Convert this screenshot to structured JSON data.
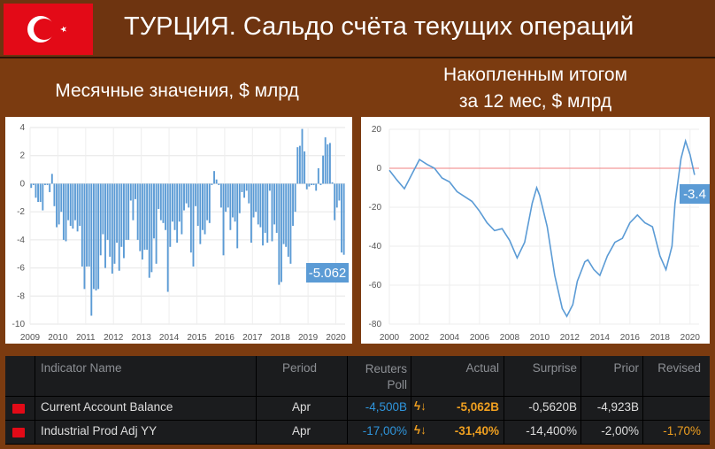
{
  "header": {
    "title": "ТУРЦИЯ. Сальдо счёта текущих операций",
    "flag": "turkey-flag"
  },
  "left_subtitle": "Месячные значения, $ млрд",
  "right_subtitle_line1": "Накопленным итогом",
  "right_subtitle_line2": "за 12 мес, $ млрд",
  "chart_data": [
    {
      "type": "bar",
      "color": "#5b9bd5",
      "ylim": [
        -10,
        4
      ],
      "yticks": [
        "4",
        "2",
        "0",
        "-2",
        "-4",
        "-6",
        "-8",
        "-10"
      ],
      "xticks": [
        "2009",
        "2010",
        "2011",
        "2012",
        "2013",
        "2014",
        "2015",
        "2016",
        "2017",
        "2018",
        "2019",
        "2020"
      ],
      "start": "2009-01",
      "annotation": "-5.062",
      "values": [
        -0.3,
        -0.1,
        -1.0,
        -1.3,
        -1.3,
        -1.9,
        -0.1,
        -0.1,
        -0.6,
        0.7,
        -1.6,
        -3.1,
        -2.9,
        -2.0,
        -4.0,
        -4.1,
        -2.6,
        -3.0,
        -3.2,
        -2.6,
        -3.4,
        -3.0,
        -5.9,
        -7.5,
        -5.9,
        -5.9,
        -9.4,
        -7.5,
        -7.6,
        -7.5,
        -5.1,
        -3.6,
        -6.0,
        -4.0,
        -5.2,
        -6.4,
        -5.7,
        -4.2,
        -6.2,
        -4.5,
        -5.3,
        -4.0,
        -4.0,
        -1.2,
        -2.6,
        -1.1,
        -4.0,
        -4.8,
        -5.4,
        -4.7,
        -4.7,
        -6.7,
        -6.3,
        -3.9,
        -5.7,
        -1.8,
        -2.6,
        -2.8,
        -3.3,
        -7.7,
        -4.5,
        -2.7,
        -3.3,
        -4.2,
        -2.7,
        -3.6,
        -1.9,
        -1.4,
        -1.7,
        -4.9,
        -5.9,
        -1.6,
        -3.0,
        -4.3,
        -3.3,
        -3.6,
        -2.6,
        -2.8,
        -0.1,
        0.9,
        0.3,
        -0.1,
        -1.7,
        -5.1,
        -2.0,
        -1.7,
        -3.3,
        -2.4,
        -2.7,
        -4.6,
        -2.1,
        -0.6,
        -1.0,
        -0.5,
        -1.4,
        -4.2,
        -2.4,
        -2.0,
        -2.9,
        -3.1,
        -4.4,
        -3.5,
        -4.2,
        -0.5,
        -4.1,
        -2.9,
        -3.5,
        -7.2,
        -7.0,
        -4.3,
        -4.5,
        -5.2,
        -5.7,
        -3.0,
        -2.0,
        2.6,
        2.7,
        3.9,
        2.3,
        -0.4,
        -0.2,
        -0.1,
        -0.1,
        -0.5,
        1.1,
        -0.1,
        2.0,
        3.3,
        2.8,
        2.9,
        0.1,
        -2.6,
        -1.7,
        -1.2,
        -4.9,
        -5.062
      ]
    },
    {
      "type": "line",
      "color": "#5b9bd5",
      "zero_line_color": "#f08080",
      "ylim": [
        -80,
        20
      ],
      "xlim": [
        2000,
        2020.6
      ],
      "yticks": [
        "20",
        "0",
        "-20",
        "-40",
        "-60",
        "-80"
      ],
      "xticks": [
        "2000",
        "2002",
        "2004",
        "2006",
        "2008",
        "2010",
        "2012",
        "2014",
        "2016",
        "2018",
        "2020"
      ],
      "annotation": "-3.4",
      "points": [
        [
          2000,
          -1
        ],
        [
          2000.5,
          -6
        ],
        [
          2001,
          -10.5
        ],
        [
          2001.5,
          -3
        ],
        [
          2002,
          4.5
        ],
        [
          2002.5,
          2
        ],
        [
          2003,
          0
        ],
        [
          2003.5,
          -5
        ],
        [
          2004,
          -7
        ],
        [
          2004.5,
          -12
        ],
        [
          2005,
          -14.5
        ],
        [
          2005.5,
          -17
        ],
        [
          2006,
          -22
        ],
        [
          2006.5,
          -28
        ],
        [
          2007,
          -32
        ],
        [
          2007.5,
          -31
        ],
        [
          2008,
          -37
        ],
        [
          2008.5,
          -46
        ],
        [
          2009,
          -38
        ],
        [
          2009.5,
          -18
        ],
        [
          2009.8,
          -10
        ],
        [
          2010,
          -14
        ],
        [
          2010.5,
          -30
        ],
        [
          2011,
          -55
        ],
        [
          2011.5,
          -72
        ],
        [
          2011.8,
          -76
        ],
        [
          2012.2,
          -70
        ],
        [
          2012.5,
          -58
        ],
        [
          2013,
          -48
        ],
        [
          2013.2,
          -47
        ],
        [
          2013.6,
          -52
        ],
        [
          2014,
          -55
        ],
        [
          2014.5,
          -45
        ],
        [
          2015,
          -38
        ],
        [
          2015.5,
          -36
        ],
        [
          2016,
          -28
        ],
        [
          2016.5,
          -24
        ],
        [
          2017,
          -28
        ],
        [
          2017.5,
          -30
        ],
        [
          2018,
          -45
        ],
        [
          2018.4,
          -52
        ],
        [
          2018.8,
          -40
        ],
        [
          2019,
          -18
        ],
        [
          2019.4,
          5
        ],
        [
          2019.7,
          14
        ],
        [
          2020,
          7
        ],
        [
          2020.3,
          -3.4
        ]
      ]
    }
  ],
  "table": {
    "headers": {
      "name": "Indicator Name",
      "period": "Period",
      "poll1": "Reuters",
      "poll2": "Poll",
      "actual": "Actual",
      "surprise": "Surprise",
      "prior": "Prior",
      "revised": "Revised"
    },
    "rows": [
      {
        "name": "Current Account Balance",
        "period": "Apr",
        "poll": "-4,500B",
        "actual": "-5,062B",
        "surprise": "-0,5620B",
        "prior": "-4,923B",
        "revised": ""
      },
      {
        "name": "Industrial Prod Adj YY",
        "period": "Apr",
        "poll": "-17,00%",
        "actual": "-31,40%",
        "surprise": "-14,400%",
        "prior": "-2,00%",
        "revised": "-1,70%"
      }
    ]
  }
}
